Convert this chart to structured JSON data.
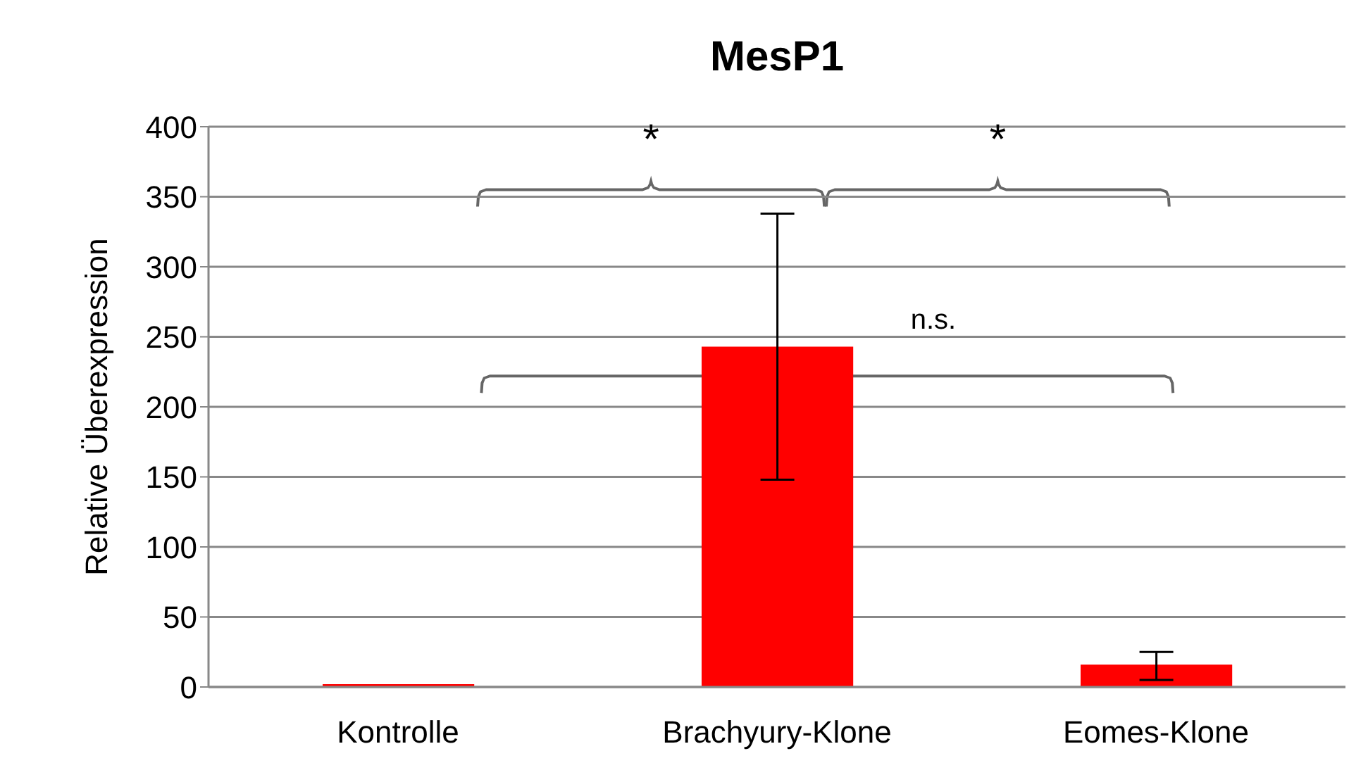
{
  "chart_data": {
    "type": "bar",
    "title": "MesP1",
    "ylabel": "Relative Überexpression",
    "categories": [
      "Kontrolle",
      "Brachyury-Klone",
      "Eomes-Klone"
    ],
    "values": [
      2,
      243,
      16
    ],
    "color": "#ff0000",
    "errors": [
      null,
      [
        148,
        338
      ],
      [
        5,
        25
      ]
    ],
    "ylim": [
      0,
      400
    ],
    "yticks": [
      0,
      50,
      100,
      150,
      200,
      250,
      300,
      350,
      400
    ],
    "grid": "y",
    "legend": false,
    "annotations": [
      "*",
      "*",
      "n.s."
    ]
  }
}
